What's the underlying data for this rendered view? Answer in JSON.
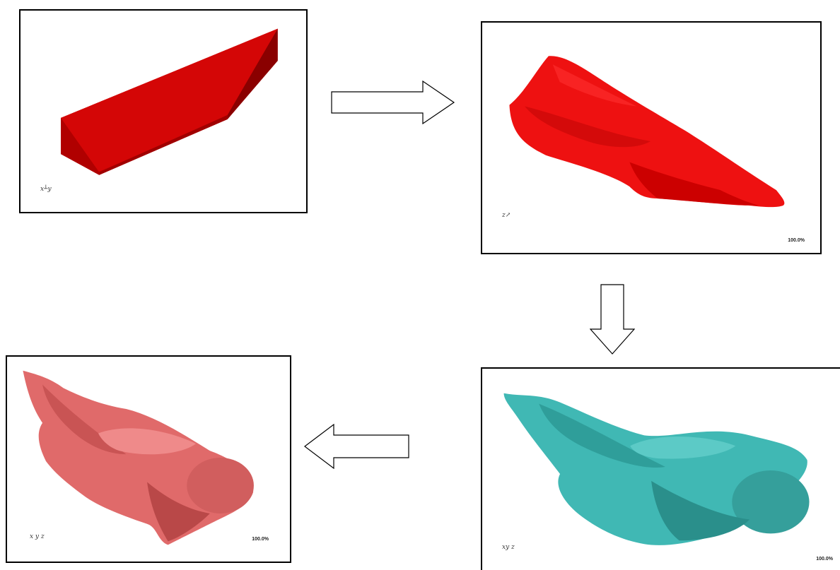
{
  "panels": [
    {
      "name": "initial-box",
      "color": "#cc0000",
      "axis_label": "x┴y",
      "zoom": ""
    },
    {
      "name": "red-deformed-shape",
      "color": "#ee1111",
      "axis_label": "z↗",
      "zoom": "100.0%"
    },
    {
      "name": "teal-deformed-shape",
      "color": "#40b8b4",
      "axis_label": "xy z",
      "zoom": "100.0%"
    },
    {
      "name": "pink-deformed-shape",
      "color": "#e06a6a",
      "axis_label": "x y z",
      "zoom": "100.0%"
    }
  ],
  "arrows": [
    "right",
    "down",
    "left"
  ],
  "colors": {
    "border": "#000000",
    "arrow_fill": "#ffffff",
    "arrow_stroke": "#000000"
  }
}
